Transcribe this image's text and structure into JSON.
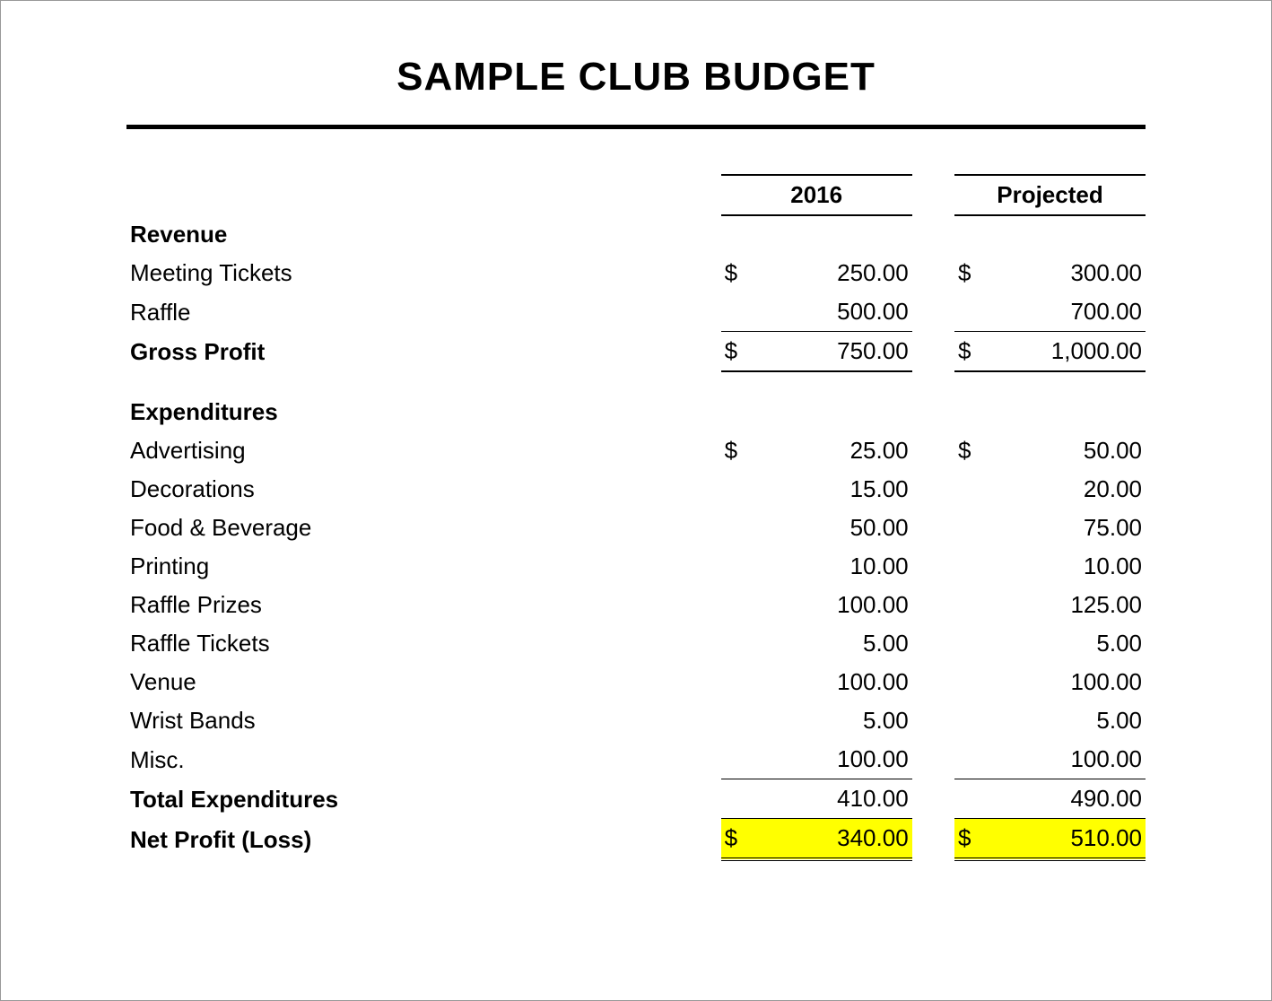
{
  "title": "SAMPLE CLUB BUDGET",
  "colors": {
    "background": "#ffffff",
    "text": "#000000",
    "rule": "#000000",
    "highlight": "#ffff00",
    "border": "#000000"
  },
  "typography": {
    "title_fontsize_pt": 33,
    "body_fontsize_pt": 20,
    "font_family": "Arial"
  },
  "columns": [
    {
      "key": "y2016",
      "label": "2016"
    },
    {
      "key": "projected",
      "label": "Projected"
    }
  ],
  "currency_symbol": "$",
  "sections": {
    "revenue": {
      "heading": "Revenue",
      "items": [
        {
          "label": "Meeting Tickets",
          "y2016": "250.00",
          "projected": "300.00",
          "show_symbol": true
        },
        {
          "label": "Raffle",
          "y2016": "500.00",
          "projected": "700.00",
          "show_symbol": false,
          "underline": true
        }
      ],
      "subtotal": {
        "label": "Gross Profit",
        "y2016": "750.00",
        "projected": "1,000.00",
        "show_symbol": true,
        "top_border": true,
        "bottom_border": true
      }
    },
    "expenditures": {
      "heading": "Expenditures",
      "items": [
        {
          "label": "Advertising",
          "y2016": "25.00",
          "projected": "50.00",
          "show_symbol": true
        },
        {
          "label": "Decorations",
          "y2016": "15.00",
          "projected": "20.00",
          "show_symbol": false
        },
        {
          "label": "Food & Beverage",
          "y2016": "50.00",
          "projected": "75.00",
          "show_symbol": false
        },
        {
          "label": "Printing",
          "y2016": "10.00",
          "projected": "10.00",
          "show_symbol": false
        },
        {
          "label": "Raffle Prizes",
          "y2016": "100.00",
          "projected": "125.00",
          "show_symbol": false
        },
        {
          "label": "Raffle Tickets",
          "y2016": "5.00",
          "projected": "5.00",
          "show_symbol": false
        },
        {
          "label": "Venue",
          "y2016": "100.00",
          "projected": "100.00",
          "show_symbol": false
        },
        {
          "label": "Wrist Bands",
          "y2016": "5.00",
          "projected": "5.00",
          "show_symbol": false
        },
        {
          "label": "Misc.",
          "y2016": "100.00",
          "projected": "100.00",
          "show_symbol": false,
          "underline": true
        }
      ],
      "subtotal": {
        "label": "Total Expenditures",
        "y2016": "410.00",
        "projected": "490.00",
        "show_symbol": false,
        "top_border": true,
        "bottom_border": true
      }
    }
  },
  "net": {
    "label": "Net Profit (Loss)",
    "y2016": "340.00",
    "projected": "510.00",
    "show_symbol": true,
    "highlight": true,
    "double_underline": true
  }
}
